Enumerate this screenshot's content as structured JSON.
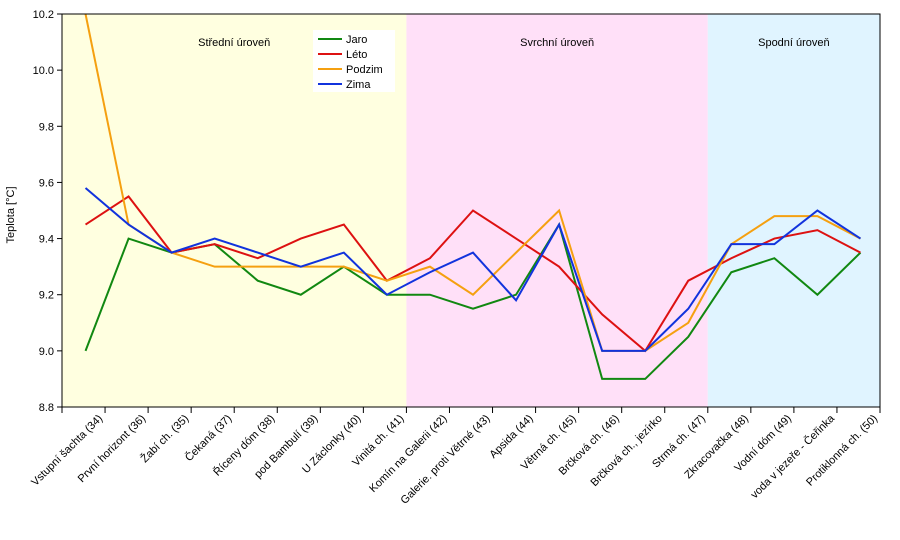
{
  "chart_data": {
    "type": "line",
    "title": "",
    "xlabel": "",
    "ylabel": "Teplota [°C]",
    "ylim": [
      8.8,
      10.2
    ],
    "yticks": [
      "8.8",
      "9.0",
      "9.2",
      "9.4",
      "9.6",
      "9.8",
      "10.0",
      "10.2"
    ],
    "grid": false,
    "legend_position": "top-center",
    "categories": [
      "Vstupní šachta (34)",
      "První horizont (36)",
      "Žabí ch. (35)",
      "Čekaná (37)",
      "Říceny dóm (38)",
      "pod Bambulí (39)",
      "U Záclonky (40)",
      "Vinitá ch. (41)",
      "Komín na Galerii (42)",
      "Galerie. proti Větrné (43)",
      "Apsida (44)",
      "Větrná ch. (45)",
      "Brčková ch. (46)",
      "Brčková ch., jezírko",
      "Strmá ch. (47)",
      "Zkracovačka (48)",
      "Vodní dóm (49)",
      "voda v jezeře - Čeřinka",
      "Protiklonná ch. (50)"
    ],
    "regions": [
      {
        "label": "Střední úroveň",
        "from": 0,
        "to": 8,
        "color": "#ffffe0"
      },
      {
        "label": "Svrchní úroveň",
        "from": 8,
        "to": 15,
        "color": "#ffe0f8"
      },
      {
        "label": "Spodní úroveň",
        "from": 15,
        "to": 19,
        "color": "#e0f4ff"
      }
    ],
    "series": [
      {
        "name": "Jaro",
        "color": "#118811",
        "values": [
          9.0,
          9.4,
          9.35,
          9.38,
          9.25,
          9.2,
          9.3,
          9.2,
          9.2,
          9.15,
          9.2,
          9.45,
          8.9,
          8.9,
          9.05,
          9.28,
          9.33,
          9.2,
          9.35
        ]
      },
      {
        "name": "Léto",
        "color": "#dd1111",
        "values": [
          9.45,
          9.55,
          9.35,
          9.38,
          9.33,
          9.4,
          9.45,
          9.25,
          9.33,
          9.5,
          9.4,
          9.3,
          9.13,
          9.0,
          9.25,
          9.33,
          9.4,
          9.43,
          9.35
        ]
      },
      {
        "name": "Podzim",
        "color": "#f5a010",
        "values": [
          10.2,
          9.45,
          9.35,
          9.3,
          9.3,
          9.3,
          9.3,
          9.25,
          9.3,
          9.2,
          9.35,
          9.5,
          9.0,
          9.0,
          9.1,
          9.38,
          9.48,
          9.48,
          9.4
        ]
      },
      {
        "name": "Zima",
        "color": "#1133dd",
        "values": [
          9.58,
          9.45,
          9.35,
          9.4,
          9.35,
          9.3,
          9.35,
          9.2,
          9.28,
          9.35,
          9.18,
          9.45,
          9.0,
          9.0,
          9.15,
          9.38,
          9.38,
          9.5,
          9.4
        ]
      }
    ]
  }
}
